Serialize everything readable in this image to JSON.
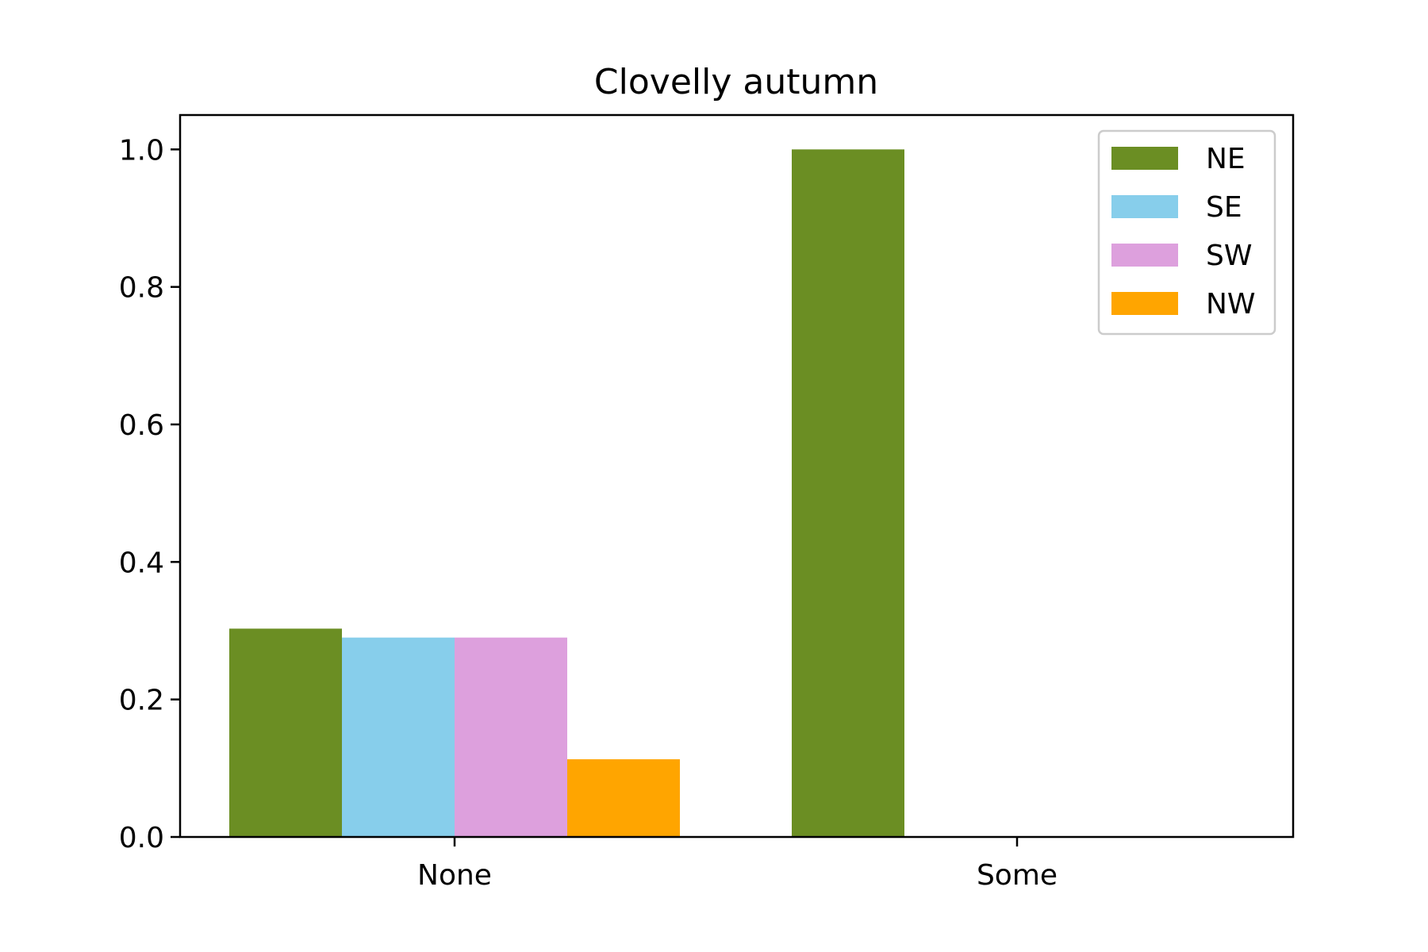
{
  "chart_data": {
    "type": "bar",
    "title": "Clovelly autumn",
    "xlabel": "",
    "ylabel": "",
    "categories": [
      "None",
      "Some"
    ],
    "series": [
      {
        "name": "NE",
        "color": "#6b8e23",
        "values": [
          0.303,
          1.0
        ]
      },
      {
        "name": "SE",
        "color": "#87ceeb",
        "values": [
          0.29,
          0.0
        ]
      },
      {
        "name": "SW",
        "color": "#dda0dd",
        "values": [
          0.29,
          0.0
        ]
      },
      {
        "name": "NW",
        "color": "#ffa500",
        "values": [
          0.113,
          0.0
        ]
      }
    ],
    "ylim": [
      0,
      1.05
    ],
    "yticks": [
      0.0,
      0.2,
      0.4,
      0.6,
      0.8,
      1.0
    ],
    "ytick_labels": [
      "0.0",
      "0.2",
      "0.4",
      "0.6",
      "0.8",
      "1.0"
    ],
    "grid": false,
    "legend_position": "top-right"
  }
}
